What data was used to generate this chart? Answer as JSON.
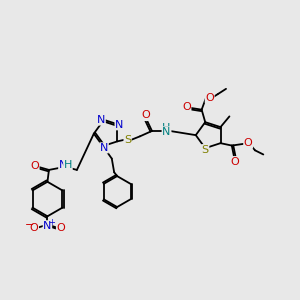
{
  "bg": "#e8e8e8",
  "bw": 1.3,
  "fs": 7.5,
  "xlim": [
    0,
    10
  ],
  "ylim": [
    0,
    9
  ],
  "figsize": [
    3.0,
    3.0
  ],
  "dpi": 100
}
